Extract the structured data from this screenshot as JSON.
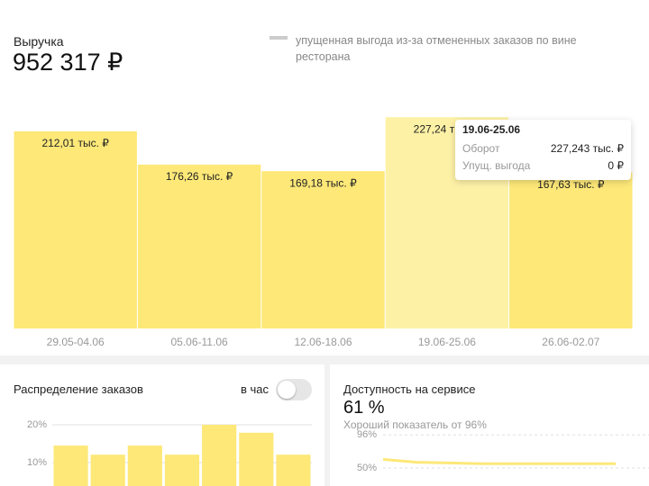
{
  "revenue": {
    "title": "Выручка",
    "total": "952 317 ₽",
    "legend": "упущенная выгода из-за отмененных заказов по вине ресторана"
  },
  "tooltip": {
    "title": "19.06-25.06",
    "rows": [
      [
        "Оборот",
        "227,243 тыс. ₽"
      ],
      [
        "Упущ. выгода",
        "0 ₽"
      ]
    ]
  },
  "orders": {
    "title": "Распределение заказов",
    "toggle": "в час"
  },
  "availability": {
    "title": "Доступность на сервисе",
    "value": "61 %",
    "note": "Хороший показатель от 96%"
  },
  "chart_data": [
    {
      "type": "bar",
      "categories": [
        "29.05-04.06",
        "05.06-11.06",
        "12.06-18.06",
        "19.06-25.06",
        "26.06-02.07"
      ],
      "values": [
        212.01,
        176.26,
        169.18,
        227.24,
        167.63
      ],
      "value_labels": [
        "212,01 тыс. ₽",
        "176,26 тыс. ₽",
        "169,18 тыс. ₽",
        "227,24 тыс. ₽",
        "167,63 тыс. ₽"
      ],
      "colors": [
        "#fde878",
        "#fde878",
        "#fde878",
        "#fdf1a6",
        "#fde878"
      ],
      "ylim": [
        0,
        240
      ]
    },
    {
      "type": "bar",
      "categories": [
        null,
        null,
        null,
        null,
        null,
        null,
        null
      ],
      "values": [
        14.5,
        12.1,
        14.5,
        12.1,
        20,
        17.9,
        12.1
      ],
      "color": "#fde878",
      "ylim": [
        0,
        25
      ],
      "yticks": [
        {
          "value": 10,
          "label": "10%"
        },
        {
          "value": 20,
          "label": "20%"
        }
      ],
      "grid": true
    },
    {
      "type": "line",
      "categories": [
        null,
        null,
        null,
        null,
        null,
        null,
        null,
        null
      ],
      "values": [
        62,
        58,
        57,
        56,
        56,
        56,
        56,
        56
      ],
      "color": "#fde878",
      "ylim": [
        0,
        100
      ],
      "yticks": [
        {
          "value": 50,
          "label": "50%"
        },
        {
          "value": 96,
          "label": "96%"
        }
      ],
      "grid": true
    }
  ]
}
